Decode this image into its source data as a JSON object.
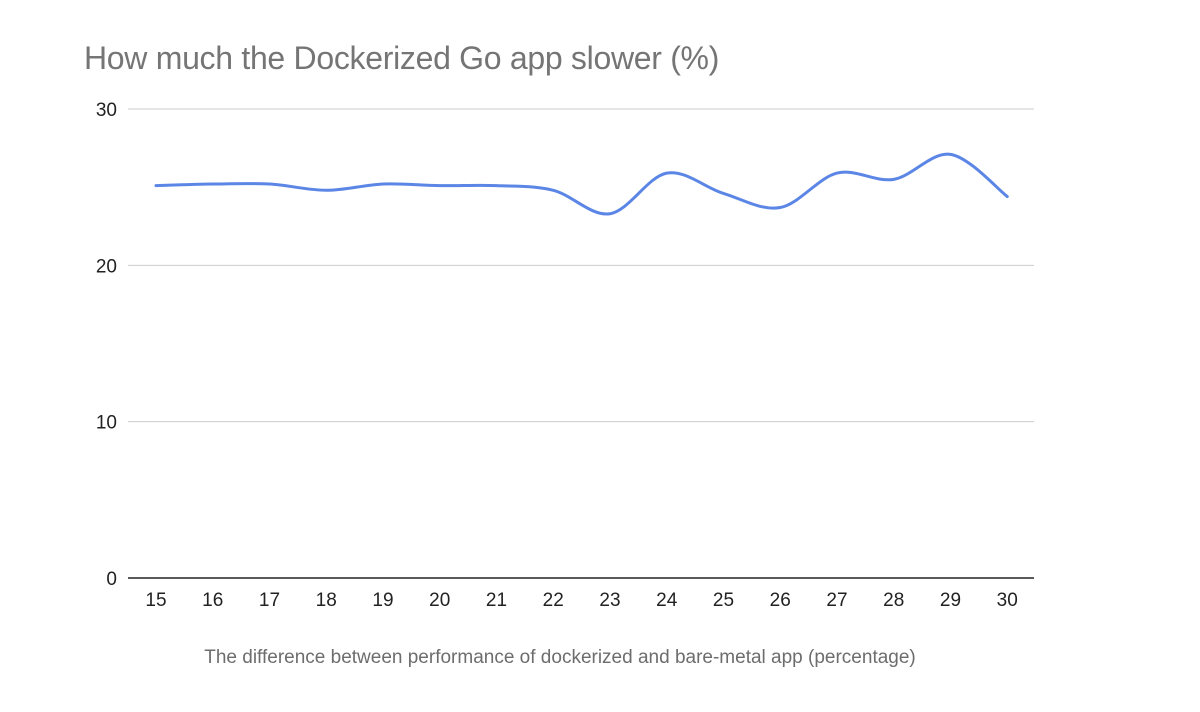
{
  "chart_data": {
    "type": "line",
    "title": "How much the Dockerized Go app slower (%)",
    "xlabel": "",
    "ylabel": "",
    "caption": "The difference between performance of dockerized and bare-metal app (percentage)",
    "x": [
      15,
      16,
      17,
      18,
      19,
      20,
      21,
      22,
      23,
      24,
      25,
      26,
      27,
      28,
      29,
      30
    ],
    "ylim": [
      0,
      30
    ],
    "yticks": [
      0,
      10,
      20,
      30
    ],
    "grid": true,
    "legend": "none",
    "series": [
      {
        "color": "#5b86e5",
        "values": [
          25.1,
          25.2,
          25.2,
          24.8,
          25.2,
          25.1,
          25.1,
          24.8,
          23.3,
          25.9,
          24.6,
          23.7,
          25.9,
          25.5,
          27.1,
          24.4
        ]
      }
    ],
    "gridline_color": "#cccccc",
    "axis_color": "#222222"
  }
}
